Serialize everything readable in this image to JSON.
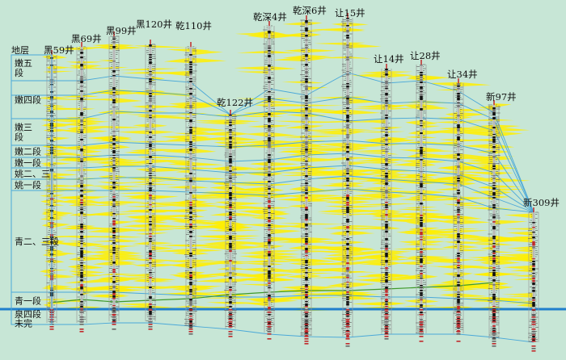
{
  "colors": {
    "background": "#c7e6d6",
    "correlation_line": "#4aa8d8",
    "base_line": "#1f7fcc",
    "green_line": "#3f9a2a",
    "sand": "#ffee00",
    "log_trace": "#555555",
    "lithology_dark": "#111111",
    "lithology_red": "#c0282a"
  },
  "column_header": "地层",
  "strata": [
    "嫩五段",
    "嫩四段",
    "嫩三段",
    "嫩二段",
    "嫩一段",
    "姚二、三",
    "姚一段",
    "青二、三段",
    "青一段",
    "泉四段",
    "未完"
  ],
  "wells": [
    {
      "name": "黑59井"
    },
    {
      "name": "黑69井"
    },
    {
      "name": "黑99井"
    },
    {
      "name": "黑120井"
    },
    {
      "name": "乾110井"
    },
    {
      "name": "乾122井"
    },
    {
      "name": "乾深4井"
    },
    {
      "name": "乾深6井"
    },
    {
      "name": "让15井"
    },
    {
      "name": "让14井"
    },
    {
      "name": "让28井"
    },
    {
      "name": "让34井"
    },
    {
      "name": "新97井"
    },
    {
      "name": "新309井"
    }
  ]
}
